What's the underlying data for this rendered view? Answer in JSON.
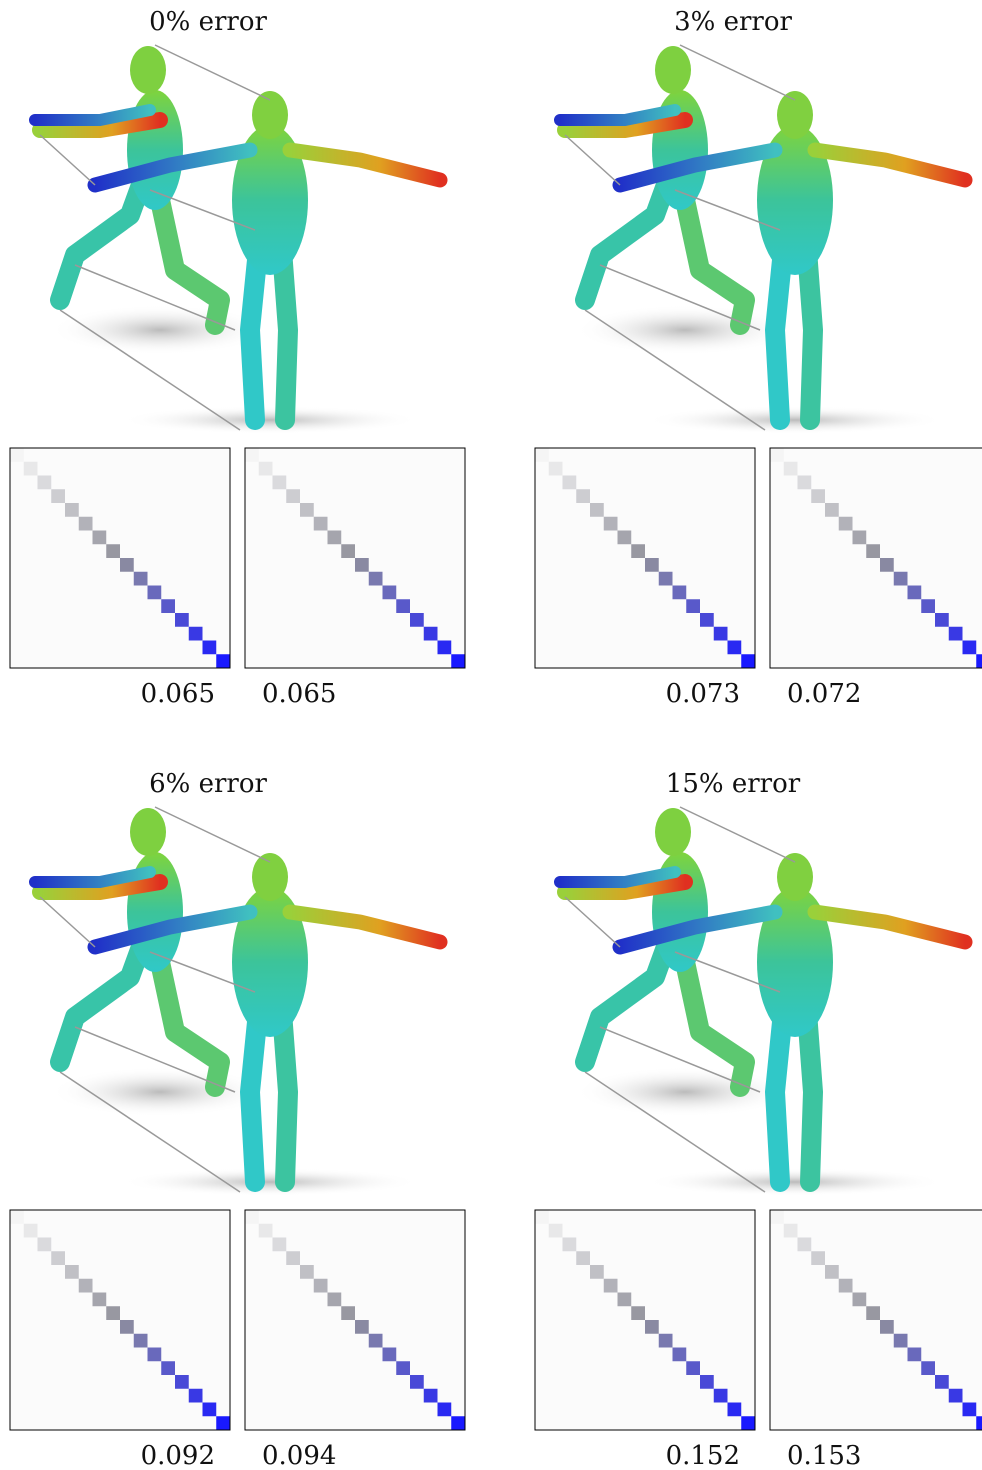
{
  "panels": [
    {
      "title": "0% error",
      "values": [
        0.065,
        0.065
      ]
    },
    {
      "title": "3% error",
      "values": [
        0.073,
        0.072
      ]
    },
    {
      "title": "6% error",
      "values": [
        0.092,
        0.094
      ]
    },
    {
      "title": "15% error",
      "values": [
        0.152,
        0.153
      ]
    }
  ]
}
